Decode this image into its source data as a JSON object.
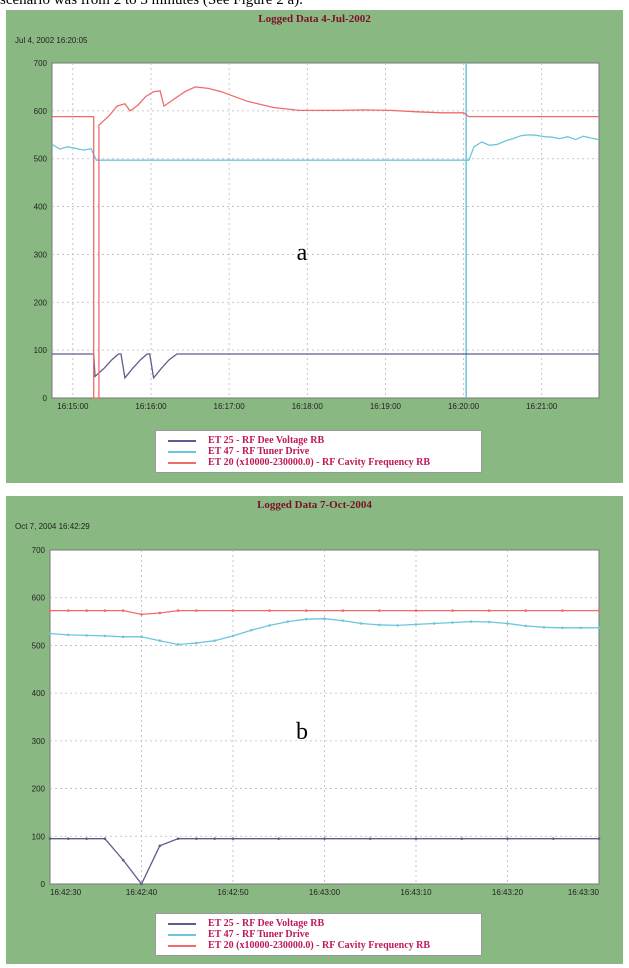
{
  "caption_top": "scenario was from 2 to 3 minutes (See Figure 2 a).",
  "colors": {
    "dee_voltage": "#5b5e8c",
    "tuner_drive": "#6cc6dc",
    "cavity_frequency": "#f06b6b",
    "panel_bg": "#8ab882",
    "title": "#7a0f2a",
    "legend_text": "#c0185a"
  },
  "chart_data": [
    {
      "type": "line",
      "panel_letter": "a",
      "title": "Logged Data  4-Jul-2002",
      "timestamp": "Jul 4, 2002 16:20:05",
      "ylim": [
        0,
        700
      ],
      "y_ticks": [
        "0",
        "100",
        "200",
        "300",
        "400",
        "500",
        "600",
        "700"
      ],
      "xlim_seconds": [
        0,
        420
      ],
      "x_ticks": [
        {
          "label": "16:15:00",
          "t": 16
        },
        {
          "label": "16:16:00",
          "t": 76
        },
        {
          "label": "16:17:00",
          "t": 136
        },
        {
          "label": "16:18:00",
          "t": 196
        },
        {
          "label": "16:19:00",
          "t": 256
        },
        {
          "label": "16:20:00",
          "t": 316
        },
        {
          "label": "16:21:00",
          "t": 376
        }
      ],
      "grid": true,
      "legend_position": "bottom",
      "series": [
        {
          "name": "ET 25 - RF Dee Voltage RB",
          "color_key": "dee_voltage",
          "points": [
            [
              0,
              92
            ],
            [
              30,
              92
            ],
            [
              32,
              92
            ],
            [
              33,
              45
            ],
            [
              40,
              62
            ],
            [
              46,
              80
            ],
            [
              51,
              92
            ],
            [
              53,
              92
            ],
            [
              56,
              42
            ],
            [
              62,
              62
            ],
            [
              68,
              80
            ],
            [
              73,
              92
            ],
            [
              75,
              92
            ],
            [
              78,
              42
            ],
            [
              84,
              62
            ],
            [
              90,
              80
            ],
            [
              96,
              92
            ],
            [
              420,
              92
            ]
          ]
        },
        {
          "name": "ET 47 - RF Tuner Drive",
          "color_key": "tuner_drive",
          "points": [
            [
              0,
              530
            ],
            [
              6,
              520
            ],
            [
              12,
              525
            ],
            [
              18,
              522
            ],
            [
              24,
              518
            ],
            [
              30,
              521
            ],
            [
              34,
              497
            ],
            [
              320,
              497
            ],
            [
              324,
              525
            ],
            [
              330,
              535
            ],
            [
              336,
              528
            ],
            [
              342,
              530
            ],
            [
              348,
              537
            ],
            [
              354,
              542
            ],
            [
              360,
              548
            ],
            [
              366,
              550
            ],
            [
              372,
              549
            ],
            [
              378,
              546
            ],
            [
              384,
              545
            ],
            [
              390,
              542
            ],
            [
              396,
              546
            ],
            [
              402,
              540
            ],
            [
              408,
              547
            ],
            [
              414,
              543
            ],
            [
              420,
              540
            ]
          ]
        },
        {
          "name": "ET 20 (x10000-230000.0) - RF Cavity Frequency RB",
          "color_key": "cavity_frequency",
          "points": [
            [
              0,
              588
            ],
            [
              32,
              588
            ],
            [
              32,
              0
            ],
            [
              36,
              0
            ],
            [
              36,
              570
            ],
            [
              44,
              590
            ],
            [
              50,
              610
            ],
            [
              56,
              615
            ],
            [
              60,
              600
            ],
            [
              66,
              612
            ],
            [
              72,
              630
            ],
            [
              78,
              640
            ],
            [
              83,
              642
            ],
            [
              86,
              610
            ],
            [
              94,
              625
            ],
            [
              102,
              640
            ],
            [
              110,
              650
            ],
            [
              120,
              647
            ],
            [
              130,
              640
            ],
            [
              150,
              620
            ],
            [
              170,
              607
            ],
            [
              190,
              601
            ],
            [
              220,
              601
            ],
            [
              240,
              602
            ],
            [
              260,
              601
            ],
            [
              280,
              598
            ],
            [
              300,
              596
            ],
            [
              316,
              596
            ],
            [
              320,
              588
            ],
            [
              420,
              588
            ]
          ]
        }
      ],
      "cursor_line_t": 318
    },
    {
      "type": "line",
      "panel_letter": "b",
      "title": "Logged Data  7-Oct-2004",
      "timestamp": "Oct 7, 2004 16:42:29",
      "ylim": [
        0,
        700
      ],
      "y_ticks": [
        "0",
        "100",
        "200",
        "300",
        "400",
        "500",
        "600",
        "700"
      ],
      "xlim_seconds": [
        0,
        60
      ],
      "x_ticks": [
        {
          "label": "16:42:30",
          "t": 0
        },
        {
          "label": "16:42:40",
          "t": 10
        },
        {
          "label": "16:42:50",
          "t": 20
        },
        {
          "label": "16:43:00",
          "t": 30
        },
        {
          "label": "16:43:10",
          "t": 40
        },
        {
          "label": "16:43:20",
          "t": 50
        },
        {
          "label": "16:43:30",
          "t": 60
        }
      ],
      "grid": true,
      "legend_position": "bottom",
      "series": [
        {
          "name": "ET 25 - RF Dee Voltage RB",
          "color_key": "dee_voltage",
          "markers": true,
          "points": [
            [
              0,
              95
            ],
            [
              2,
              95
            ],
            [
              4,
              95
            ],
            [
              6,
              95
            ],
            [
              8,
              50
            ],
            [
              10,
              0
            ],
            [
              12,
              80
            ],
            [
              14,
              95
            ],
            [
              16,
              95
            ],
            [
              18,
              95
            ],
            [
              20,
              95
            ],
            [
              25,
              95
            ],
            [
              30,
              95
            ],
            [
              35,
              95
            ],
            [
              40,
              95
            ],
            [
              45,
              95
            ],
            [
              50,
              95
            ],
            [
              55,
              95
            ],
            [
              60,
              95
            ]
          ]
        },
        {
          "name": "ET 47 - RF Tuner Drive",
          "color_key": "tuner_drive",
          "markers": true,
          "points": [
            [
              0,
              525
            ],
            [
              2,
              522
            ],
            [
              4,
              521
            ],
            [
              6,
              520
            ],
            [
              8,
              518
            ],
            [
              10,
              518
            ],
            [
              12,
              510
            ],
            [
              14,
              502
            ],
            [
              16,
              505
            ],
            [
              18,
              510
            ],
            [
              20,
              520
            ],
            [
              22,
              532
            ],
            [
              24,
              542
            ],
            [
              26,
              550
            ],
            [
              28,
              555
            ],
            [
              30,
              556
            ],
            [
              32,
              552
            ],
            [
              34,
              546
            ],
            [
              36,
              543
            ],
            [
              38,
              542
            ],
            [
              40,
              544
            ],
            [
              42,
              546
            ],
            [
              44,
              548
            ],
            [
              46,
              550
            ],
            [
              48,
              549
            ],
            [
              50,
              546
            ],
            [
              52,
              541
            ],
            [
              54,
              538
            ],
            [
              56,
              537
            ],
            [
              58,
              537
            ],
            [
              60,
              537
            ]
          ]
        },
        {
          "name": "ET 20 (x10000-230000.0) - RF Cavity Frequency RB",
          "color_key": "cavity_frequency",
          "markers": true,
          "points": [
            [
              0,
              573
            ],
            [
              2,
              573
            ],
            [
              4,
              573
            ],
            [
              6,
              573
            ],
            [
              8,
              573
            ],
            [
              10,
              565
            ],
            [
              12,
              568
            ],
            [
              14,
              573
            ],
            [
              16,
              573
            ],
            [
              20,
              573
            ],
            [
              24,
              573
            ],
            [
              28,
              573
            ],
            [
              32,
              573
            ],
            [
              36,
              573
            ],
            [
              40,
              573
            ],
            [
              44,
              573
            ],
            [
              48,
              573
            ],
            [
              52,
              573
            ],
            [
              56,
              573
            ],
            [
              60,
              573
            ]
          ]
        }
      ]
    }
  ]
}
